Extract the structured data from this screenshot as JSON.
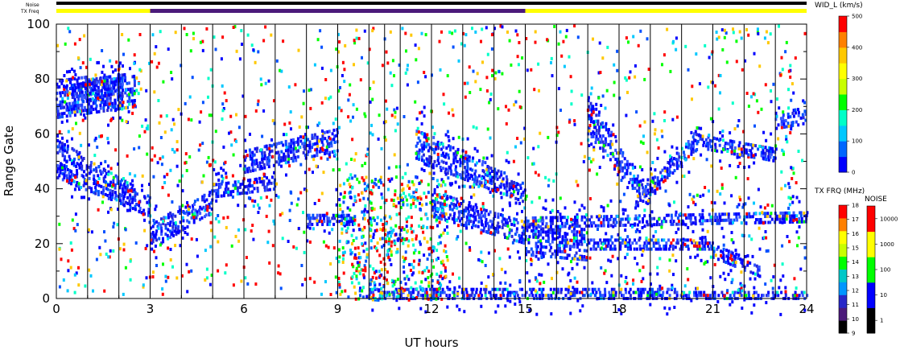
{
  "strip_labels": {
    "noise": "Noise",
    "tx_freq": "TX Freq"
  },
  "chart_data": {
    "type": "heatmap",
    "title": "",
    "xlabel": "UT hours",
    "ylabel": "Range Gate",
    "xlim": [
      0,
      24
    ],
    "ylim": [
      0,
      100
    ],
    "x_ticks": [
      0,
      3,
      6,
      9,
      12,
      15,
      18,
      21,
      24
    ],
    "y_ticks": [
      0,
      20,
      40,
      60,
      80,
      100
    ],
    "tx_freq_strip": [
      {
        "start": 0,
        "end": 3,
        "color": "#ffff00"
      },
      {
        "start": 3,
        "end": 15,
        "color": "#4b1a7a"
      },
      {
        "start": 15,
        "end": 24,
        "color": "#ffff00"
      }
    ],
    "noise_strip": [
      {
        "start": 0,
        "end": 24,
        "color": "#000000"
      }
    ],
    "scan_boundaries_ut": [
      0,
      1,
      2,
      3,
      4,
      5,
      6,
      7,
      8,
      9,
      10,
      10.5,
      11,
      12,
      13,
      14,
      15,
      16,
      17,
      18,
      19,
      20,
      21,
      22,
      23,
      24
    ],
    "scatter_bands": [
      {
        "x": [
          0,
          3
        ],
        "y0": [
          52,
          33
        ],
        "y1": [
          58,
          37
        ]
      },
      {
        "x": [
          0,
          3
        ],
        "y0": [
          44,
          30
        ],
        "y1": [
          50,
          33
        ]
      },
      {
        "x": [
          3,
          5
        ],
        "y0": [
          18,
          32
        ],
        "y1": [
          28,
          40
        ]
      },
      {
        "x": [
          5,
          7
        ],
        "y0": [
          37,
          40
        ],
        "y1": [
          42,
          45
        ]
      },
      {
        "x": [
          6,
          9
        ],
        "y0": [
          46,
          54
        ],
        "y1": [
          54,
          62
        ]
      },
      {
        "x": [
          8,
          9.5
        ],
        "y0": [
          27,
          27
        ],
        "y1": [
          31,
          31
        ]
      },
      {
        "x": [
          11.5,
          15
        ],
        "y0": [
          50,
          35
        ],
        "y1": [
          62,
          42
        ]
      },
      {
        "x": [
          12,
          15
        ],
        "y0": [
          30,
          20
        ],
        "y1": [
          40,
          28
        ]
      },
      {
        "x": [
          15,
          17
        ],
        "y0": [
          16,
          14
        ],
        "y1": [
          28,
          26
        ]
      },
      {
        "x": [
          15,
          24
        ],
        "y0": [
          26,
          28
        ],
        "y1": [
          30,
          32
        ]
      },
      {
        "x": [
          17,
          19
        ],
        "y0": [
          60,
          33
        ],
        "y1": [
          74,
          36
        ]
      },
      {
        "x": [
          18.5,
          20.5
        ],
        "y0": [
          33,
          55
        ],
        "y1": [
          37,
          62
        ]
      },
      {
        "x": [
          17,
          21
        ],
        "y0": [
          18,
          18
        ],
        "y1": [
          22,
          22
        ]
      },
      {
        "x": [
          21,
          22.5
        ],
        "y0": [
          15,
          8
        ],
        "y1": [
          20,
          12
        ]
      },
      {
        "x": [
          20.5,
          23
        ],
        "y0": [
          55,
          50
        ],
        "y1": [
          60,
          55
        ]
      },
      {
        "x": [
          23,
          24
        ],
        "y0": [
          62,
          64
        ],
        "y1": [
          68,
          70
        ]
      },
      {
        "x": [
          10,
          24
        ],
        "y0": [
          0,
          0
        ],
        "y1": [
          4,
          3
        ]
      },
      {
        "x": [
          0,
          2.5
        ],
        "y0": [
          66,
          70
        ],
        "y1": [
          80,
          82
        ]
      },
      {
        "x": [
          0.5,
          2
        ],
        "y0": [
          70,
          74
        ],
        "y1": [
          78,
          82
        ]
      }
    ],
    "colorbars": [
      {
        "title": "WID_L (km/s)",
        "ticks": [
          0,
          100,
          200,
          300,
          400,
          500
        ],
        "colors": [
          "#0000ff",
          "#0066ff",
          "#00c8ff",
          "#00ffc8",
          "#00ff00",
          "#c8ff00",
          "#ffff00",
          "#ffc800",
          "#ff8000",
          "#ff0000"
        ]
      },
      {
        "title": "TX FRQ (MHz)",
        "ticks": [
          9,
          10,
          11,
          12,
          13,
          14,
          15,
          16,
          17,
          18
        ],
        "colors": [
          "#000000",
          "#4b1a7a",
          "#2828c8",
          "#0096ff",
          "#00c8c8",
          "#00ff00",
          "#c8ff00",
          "#ffff00",
          "#ff8000",
          "#ff0000"
        ]
      },
      {
        "title": "NOISE",
        "ticks": [
          1,
          10,
          100,
          1000,
          10000
        ],
        "colors": [
          "#000000",
          "#0000ff",
          "#00ff00",
          "#ffff00",
          "#ff0000"
        ]
      }
    ]
  }
}
